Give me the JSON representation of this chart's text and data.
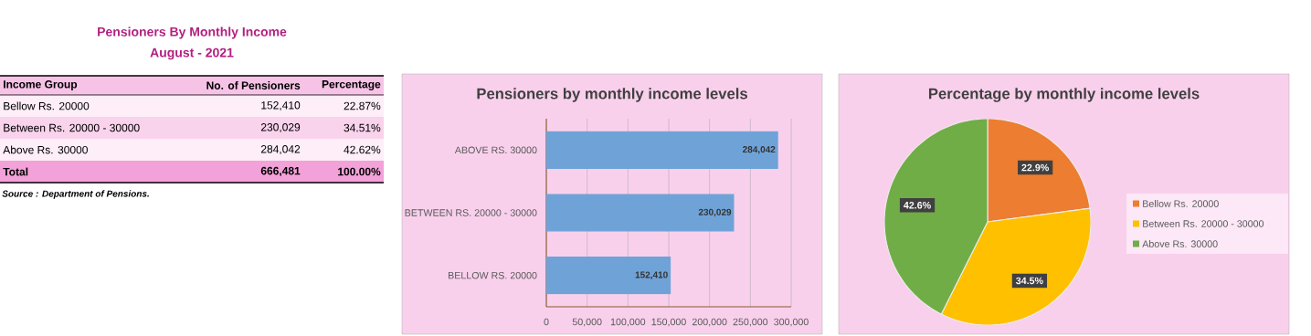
{
  "chart_data": [
    {
      "type": "other",
      "title": "Pensioners By Monthly Income",
      "subtitle": "August - 2021",
      "annotations": [
        "Income Group",
        "No. of Pensioners",
        "Percentage",
        "Bellow Rs. 20000",
        "152,410",
        "22.87%",
        "Between Rs. 20000 - 30000",
        "230,029",
        "34.51%",
        "Above Rs. 30000",
        "284,042",
        "42.62%",
        "Total",
        "666,481",
        "100.00%",
        "Source : Department of Pensions."
      ]
    },
    {
      "type": "bar",
      "orientation": "horizontal",
      "title": "Pensioners by monthly income levels",
      "categories": [
        "ABOVE RS. 30000",
        "BETWEEN RS. 20000 - 30000",
        "BELLOW RS. 20000"
      ],
      "values": [
        284042,
        230029,
        152410
      ],
      "color": "#6fa3d8",
      "value_labels": [
        "284,042",
        "230,029",
        "152,410"
      ],
      "xlim": [
        0,
        300000
      ],
      "xticks": [
        0,
        {
          "value": 50000,
          "label": "50,000"
        },
        {
          "value": 100000,
          "label": "100,000"
        },
        {
          "value": 150000,
          "label": "150,000"
        },
        {
          "value": 200000,
          "label": "200,000"
        },
        {
          "value": 250000,
          "label": "250,000"
        },
        {
          "value": 300000,
          "label": "300,000"
        }
      ],
      "grid": "x"
    },
    {
      "type": "pie",
      "title": "Percentage by monthly income levels",
      "categories": [
        "Bellow Rs. 20000",
        "Between Rs. 20000 - 30000",
        "Above Rs. 30000"
      ],
      "values": [
        22.9,
        34.5,
        42.6
      ],
      "value_labels": [
        "22.9%",
        "34.5%",
        "42.6%"
      ],
      "colors": [
        "#ed7d31",
        "#ffc000",
        "#70ad47"
      ],
      "legend": "right"
    }
  ]
}
